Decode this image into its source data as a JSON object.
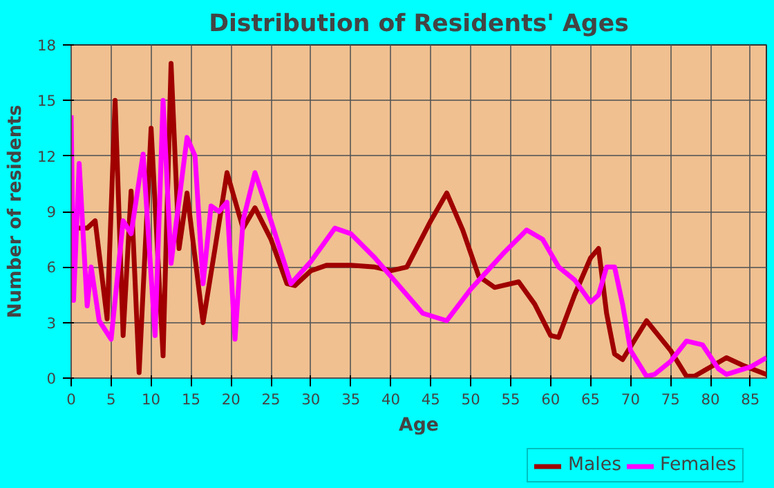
{
  "chart_data": {
    "type": "line",
    "title": "Distribution of Residents' Ages",
    "xlabel": "Age",
    "ylabel": "Number of residents",
    "xlim": [
      0,
      87
    ],
    "xticks": [
      0,
      5,
      10,
      15,
      20,
      25,
      30,
      35,
      40,
      45,
      50,
      55,
      60,
      65,
      70,
      75,
      80,
      85
    ],
    "ylim": [
      0,
      18
    ],
    "yticks": [
      0,
      3,
      6,
      9,
      12,
      15,
      18
    ],
    "grid": true,
    "legend": "bottom",
    "line_style": "solid",
    "series": [
      {
        "name": "Males",
        "color": "#a00000",
        "x": [
          0,
          1,
          2,
          3,
          4.5,
          5.5,
          6.5,
          7.5,
          8.5,
          10,
          11.5,
          12.5,
          13.5,
          14.5,
          16.5,
          18,
          19.5,
          21.5,
          23,
          25,
          27,
          28,
          30,
          32,
          35,
          38,
          40,
          42,
          45,
          47,
          49,
          51,
          53,
          56,
          58,
          60,
          61,
          63,
          65,
          66,
          67,
          68,
          69,
          72,
          75,
          77,
          78,
          80,
          82,
          84,
          87
        ],
        "values": [
          8.1,
          8.1,
          8.1,
          8.5,
          3.2,
          15,
          2.3,
          10.1,
          0.3,
          13.5,
          1.2,
          17,
          7,
          10,
          3,
          7,
          11.1,
          8.1,
          9.2,
          7.5,
          5.1,
          5,
          5.8,
          6.1,
          6.1,
          6,
          5.8,
          6,
          8.5,
          10,
          8,
          5.5,
          4.9,
          5.2,
          4,
          2.3,
          2.2,
          4.5,
          6.5,
          7,
          3.5,
          1.3,
          1,
          3.1,
          1.5,
          0.1,
          0.1,
          0.6,
          1.1,
          0.7,
          0.2
        ]
      },
      {
        "name": "Females",
        "color": "#ff00ff",
        "x": [
          0,
          0.3,
          1,
          2,
          2.5,
          3.5,
          5,
          6.5,
          7.5,
          9,
          10.5,
          11.5,
          12.5,
          14.5,
          15.5,
          16.5,
          17.5,
          18.5,
          19.5,
          20.5,
          21.5,
          23,
          25,
          27.5,
          30,
          33,
          35,
          38,
          40,
          44,
          47,
          50,
          54,
          57,
          59,
          61,
          63,
          65,
          66,
          67,
          68,
          69,
          70,
          72,
          73,
          75,
          77,
          79,
          81,
          82,
          85,
          87
        ],
        "values": [
          14.2,
          4.2,
          11.6,
          3.9,
          6,
          3.1,
          2.1,
          8.5,
          7.8,
          12.1,
          2.3,
          15,
          6.2,
          13,
          12,
          5.1,
          9.3,
          9,
          9.5,
          2.1,
          8.5,
          11.1,
          8.5,
          5.1,
          6.3,
          8.1,
          7.8,
          6.5,
          5.5,
          3.5,
          3.1,
          4.8,
          6.7,
          8,
          7.5,
          6,
          5.3,
          4.1,
          4.5,
          6,
          6,
          4,
          1.5,
          0.1,
          0.2,
          0.9,
          2,
          1.8,
          0.5,
          0.2,
          0.6,
          1.1
        ]
      }
    ]
  }
}
